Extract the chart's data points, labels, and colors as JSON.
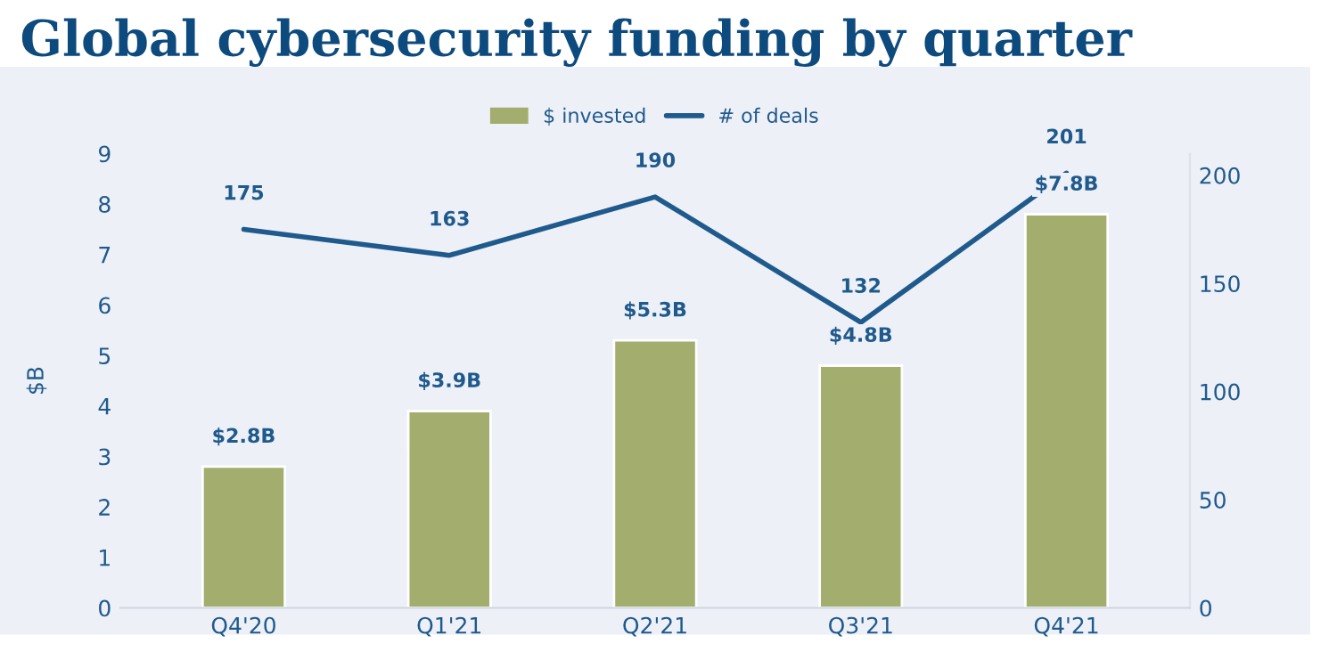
{
  "chart_data": {
    "type": "bar",
    "title": "Global cybersecurity funding by quarter",
    "ylabel": "$B",
    "categories": [
      "Q4'20",
      "Q1'21",
      "Q2'21",
      "Q3'21",
      "Q4'21"
    ],
    "series": [
      {
        "name": "$ invested",
        "color": "#a3ad6e",
        "values": [
          2.8,
          3.9,
          5.3,
          4.8,
          7.8
        ],
        "value_labels": [
          "$2.8B",
          "$3.9B",
          "$5.3B",
          "$4.8B",
          "$7.8B"
        ]
      },
      {
        "name": "# of deals",
        "type": "line",
        "axis": "y2",
        "color": "#1f5a8c",
        "values": [
          175,
          163,
          190,
          132,
          201
        ],
        "value_labels": [
          "175",
          "163",
          "190",
          "132",
          "201"
        ]
      }
    ],
    "ylim": [
      0,
      9
    ],
    "yticks": [
      0,
      1,
      2,
      3,
      4,
      5,
      6,
      7,
      8,
      9
    ],
    "y2lim": [
      0,
      210
    ],
    "y2ticks": [
      0,
      50,
      100,
      150,
      200
    ],
    "legend": "top",
    "grid": false,
    "marker": "none"
  }
}
